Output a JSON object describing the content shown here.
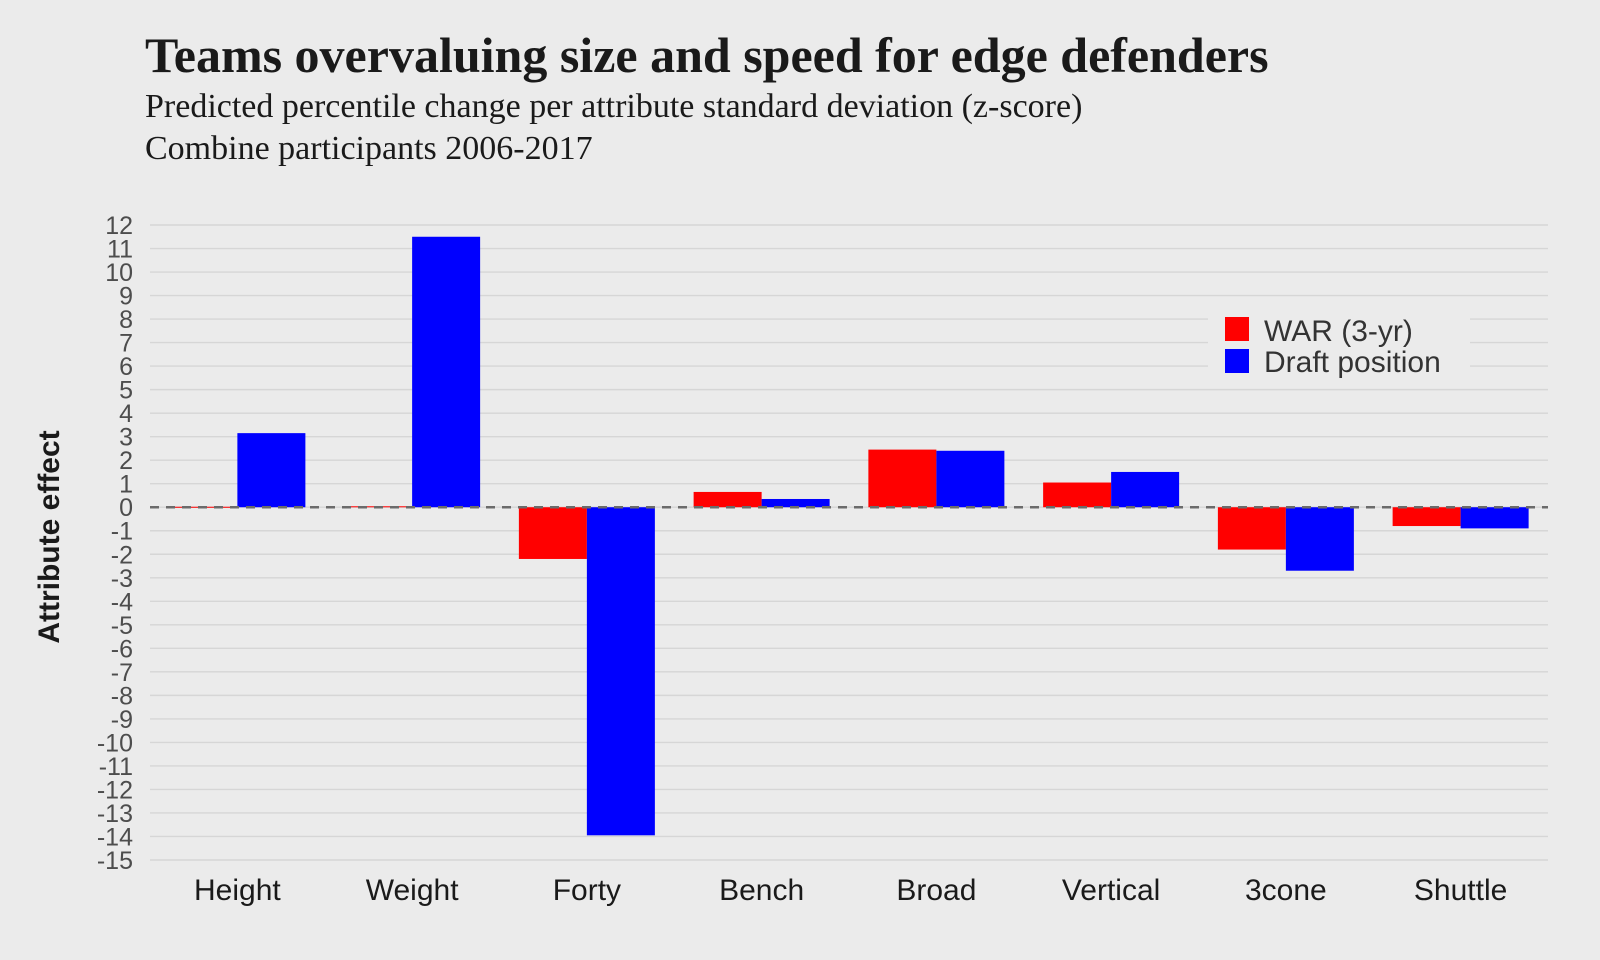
{
  "chart_data": {
    "type": "bar",
    "title": "Teams overvaluing size and speed for edge defenders",
    "subtitle_lines": [
      "Predicted percentile change per attribute standard deviation (z-score)",
      "Combine participants 2006-2017"
    ],
    "xlabel": "",
    "ylabel": "Attribute effect",
    "ylim": [
      -15,
      12
    ],
    "yticks": [
      12,
      11,
      10,
      9,
      8,
      7,
      6,
      5,
      4,
      3,
      2,
      1,
      0,
      -1,
      -2,
      -3,
      -4,
      -5,
      -6,
      -7,
      -8,
      -9,
      -10,
      -11,
      -12,
      -13,
      -14,
      -15
    ],
    "categories": [
      "Height",
      "Weight",
      "Forty",
      "Bench",
      "Broad",
      "Vertical",
      "3cone",
      "Shuttle"
    ],
    "series": [
      {
        "name": "WAR (3-yr)",
        "color": "#ff0000",
        "values": [
          0.02,
          0.04,
          -2.2,
          0.65,
          2.45,
          1.05,
          -1.8,
          -0.8
        ]
      },
      {
        "name": "Draft position",
        "color": "#0000ff",
        "values": [
          3.15,
          11.5,
          -13.95,
          0.35,
          2.4,
          1.5,
          -2.7,
          -0.9
        ]
      }
    ],
    "zero_line": "dashed",
    "grid": true,
    "legend": "top-right",
    "background": "#ebebeb"
  }
}
